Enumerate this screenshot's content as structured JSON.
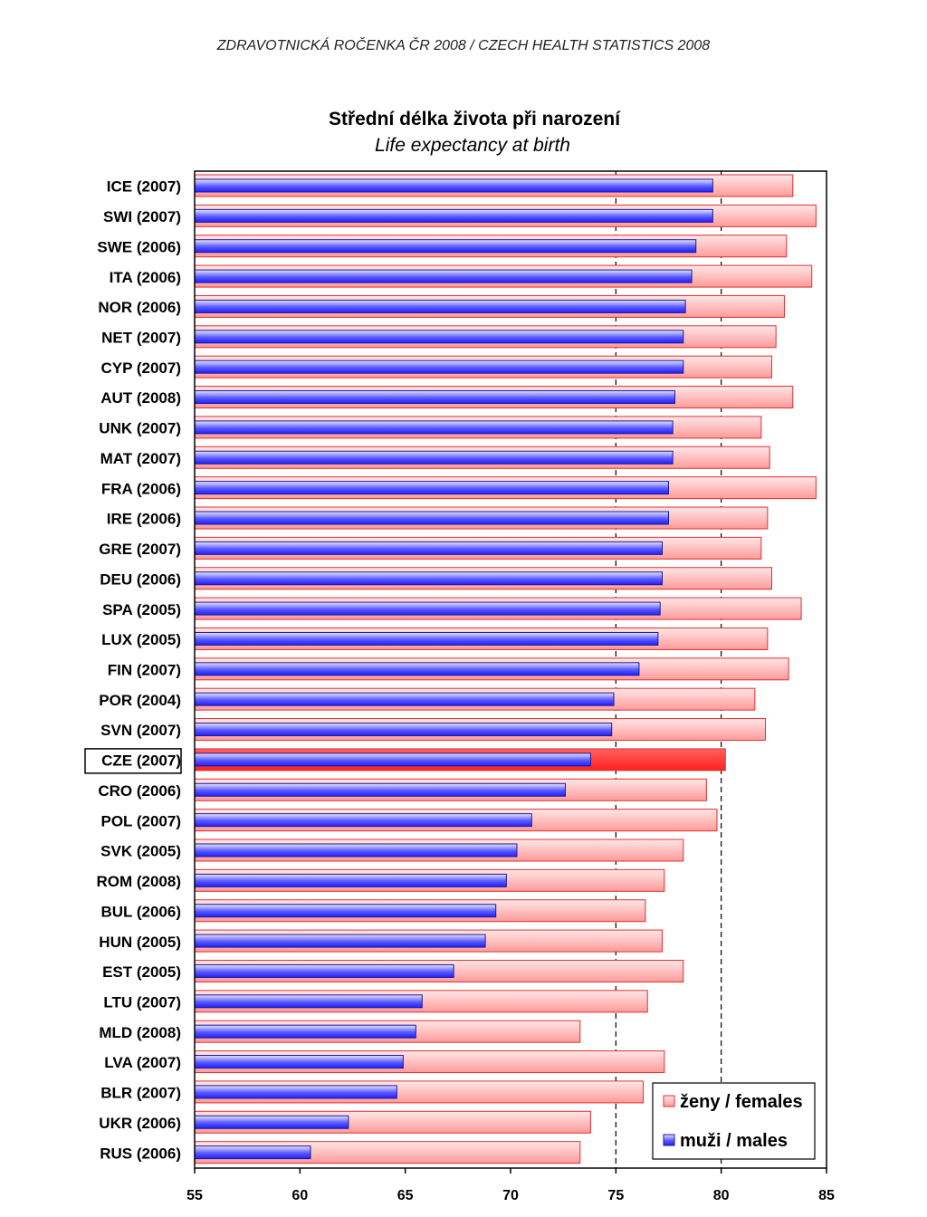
{
  "header": "ZDRAVOTNICKÁ ROČENKA ČR 2008  /  CZECH HEALTH STATISTICS 2008",
  "chart_data": {
    "type": "bar",
    "orientation": "horizontal",
    "title": "Střední délka života při narození",
    "subtitle": "Life expectancy at birth",
    "xlim": [
      55,
      85
    ],
    "xticks": [
      55,
      60,
      65,
      70,
      75,
      80,
      85
    ],
    "reference_lines": [
      75,
      80
    ],
    "highlight_category": "CZE (2007)",
    "legend_position": "bottom-right",
    "categories": [
      "ICE (2007)",
      "SWI (2007)",
      "SWE (2006)",
      "ITA (2006)",
      "NOR (2006)",
      "NET (2007)",
      "CYP (2007)",
      "AUT (2008)",
      "UNK (2007)",
      "MAT (2007)",
      "FRA (2006)",
      "IRE (2006)",
      "GRE (2007)",
      "DEU (2006)",
      "SPA (2005)",
      "LUX (2005)",
      "FIN (2007)",
      "POR (2004)",
      "SVN (2007)",
      "CZE (2007)",
      "CRO (2006)",
      "POL (2007)",
      "SVK (2005)",
      "ROM (2008)",
      "BUL (2006)",
      "HUN (2005)",
      "EST (2005)",
      "LTU (2007)",
      "MLD (2008)",
      "LVA (2007)",
      "BLR (2007)",
      "UKR (2006)",
      "RUS (2006)"
    ],
    "series": [
      {
        "name": "ženy / females",
        "color": "#ff8080",
        "values": [
          83.4,
          84.5,
          83.1,
          84.3,
          83.0,
          82.6,
          82.4,
          83.4,
          81.9,
          82.3,
          84.5,
          82.2,
          81.9,
          82.4,
          83.8,
          82.2,
          83.2,
          81.6,
          82.1,
          80.2,
          79.3,
          79.8,
          78.2,
          77.3,
          76.4,
          77.2,
          78.2,
          76.5,
          73.3,
          77.3,
          76.3,
          73.8,
          73.3
        ]
      },
      {
        "name": "muži / males",
        "color": "#6666ff",
        "values": [
          79.6,
          79.6,
          78.8,
          78.6,
          78.3,
          78.2,
          78.2,
          77.8,
          77.7,
          77.7,
          77.5,
          77.5,
          77.2,
          77.2,
          77.1,
          77.0,
          76.1,
          74.9,
          74.8,
          73.8,
          72.6,
          71.0,
          70.3,
          69.8,
          69.3,
          68.8,
          67.3,
          65.8,
          65.5,
          64.9,
          64.6,
          62.3,
          60.5
        ]
      }
    ]
  }
}
